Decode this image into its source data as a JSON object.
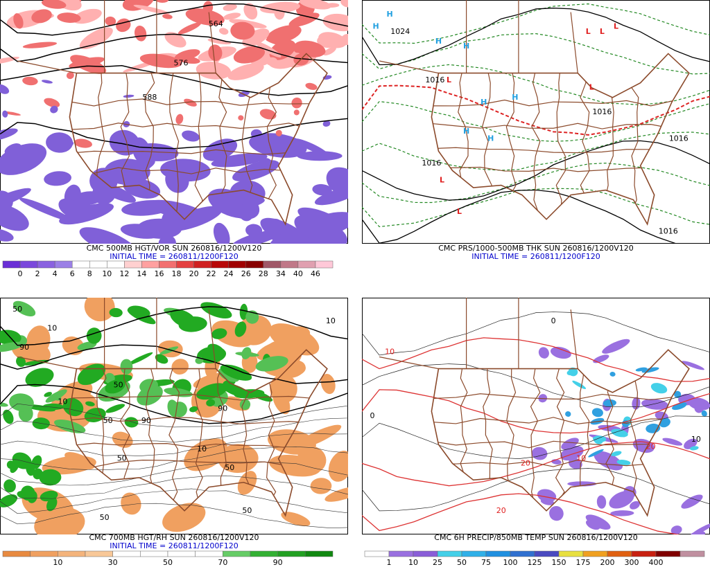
{
  "panels": [
    {
      "caption": "CMC 500MB HGT/VOR SUN 260816/1200V120",
      "initial_time": "INITIAL TIME = 260811/1200F120",
      "colorbar": {
        "colors": [
          "#6a2fd6",
          "#7a48dc",
          "#8a62e0",
          "#9b80e6",
          "#ffffff",
          "#ffffff",
          "#ffffff",
          "#ffd0d0",
          "#ffa0a0",
          "#f27070",
          "#e44040",
          "#d02020",
          "#b80808",
          "#a00000",
          "#880000",
          "#a05868",
          "#c07888",
          "#e0a0b0",
          "#ffc8d8"
        ],
        "labels": [
          "0",
          "2",
          "4",
          "6",
          "8",
          "10",
          "12",
          "14",
          "16",
          "18",
          "20",
          "22",
          "24",
          "26",
          "28",
          "34",
          "40",
          "46"
        ]
      },
      "fill_colors": [
        "#8060d8",
        "#f07070",
        "#ffb0b0"
      ],
      "map_labels": [
        {
          "text": "564",
          "color": "#000000"
        },
        {
          "text": "576",
          "color": "#000000"
        },
        {
          "text": "588",
          "color": "#000000"
        }
      ]
    },
    {
      "caption": "CMC PRS/1000-500MB THK SUN 260816/1200V120",
      "initial_time": "INITIAL TIME = 260811/1200F120",
      "colorbar": null,
      "fill_colors": [],
      "map_labels": [
        {
          "text": "H",
          "color": "#22a0e0"
        },
        {
          "text": "H",
          "color": "#22a0e0"
        },
        {
          "text": "H",
          "color": "#22a0e0"
        },
        {
          "text": "H",
          "color": "#22a0e0"
        },
        {
          "text": "H",
          "color": "#22a0e0"
        },
        {
          "text": "H",
          "color": "#22a0e0"
        },
        {
          "text": "H",
          "color": "#22a0e0"
        },
        {
          "text": "H",
          "color": "#22a0e0"
        },
        {
          "text": "L",
          "color": "#e02020"
        },
        {
          "text": "L",
          "color": "#e02020"
        },
        {
          "text": "L",
          "color": "#e02020"
        },
        {
          "text": "L",
          "color": "#e02020"
        },
        {
          "text": "L",
          "color": "#e02020"
        },
        {
          "text": "L",
          "color": "#e02020"
        },
        {
          "text": "L",
          "color": "#e02020"
        },
        {
          "text": "1024",
          "color": "#000000"
        },
        {
          "text": "1016",
          "color": "#000000"
        },
        {
          "text": "1016",
          "color": "#000000"
        },
        {
          "text": "1016",
          "color": "#000000"
        },
        {
          "text": "1016",
          "color": "#000000"
        },
        {
          "text": "1016",
          "color": "#000000"
        }
      ]
    },
    {
      "caption": "CMC 700MB HGT/RH SUN 260816/1200V120",
      "initial_time": "INITIAL TIME = 260811/1200F120",
      "colorbar": {
        "colors": [
          "#e88a40",
          "#f0a060",
          "#f4b47c",
          "#f8c898",
          "#ffffff",
          "#ffffff",
          "#ffffff",
          "#ffffff",
          "#66cc66",
          "#33b033",
          "#22a022",
          "#118811"
        ],
        "labels": [
          "10",
          "30",
          "50",
          "70",
          "90"
        ]
      },
      "fill_colors": [
        "#f0a060",
        "#22aa22",
        "#55c055"
      ],
      "map_labels": [
        {
          "text": "50",
          "color": "#000000"
        },
        {
          "text": "10",
          "color": "#000000"
        },
        {
          "text": "90",
          "color": "#000000"
        },
        {
          "text": "50",
          "color": "#000000"
        },
        {
          "text": "10",
          "color": "#000000"
        },
        {
          "text": "50",
          "color": "#000000"
        },
        {
          "text": "90",
          "color": "#000000"
        },
        {
          "text": "50",
          "color": "#000000"
        },
        {
          "text": "10",
          "color": "#000000"
        },
        {
          "text": "50",
          "color": "#000000"
        },
        {
          "text": "90",
          "color": "#000000"
        },
        {
          "text": "50",
          "color": "#000000"
        },
        {
          "text": "10",
          "color": "#000000"
        },
        {
          "text": "50",
          "color": "#000000"
        }
      ]
    },
    {
      "caption": "CMC 6H PRECIP/850MB TEMP SUN 260816/1200V120",
      "initial_time": null,
      "colorbar": {
        "colors": [
          "#ffffff",
          "#9a70e0",
          "#8a5ed8",
          "#44d0e8",
          "#30b0e8",
          "#2090e0",
          "#3070d0",
          "#4a4ac0",
          "#e8e040",
          "#f0a020",
          "#e06010",
          "#c82010",
          "#800000",
          "#c090a0"
        ],
        "labels": [
          "1",
          "10",
          "25",
          "50",
          "75",
          "100",
          "125",
          "150",
          "175",
          "200",
          "300",
          "400"
        ]
      },
      "fill_colors": [
        "#9a70e0",
        "#44d0e8",
        "#30a0e0"
      ],
      "map_labels": [
        {
          "text": "0",
          "color": "#000000"
        },
        {
          "text": "10",
          "color": "#e02020"
        },
        {
          "text": "20",
          "color": "#e02020"
        },
        {
          "text": "0",
          "color": "#000000"
        },
        {
          "text": "10",
          "color": "#e02020"
        },
        {
          "text": "20",
          "color": "#e02020"
        },
        {
          "text": "10",
          "color": "#000000"
        },
        {
          "text": "20",
          "color": "#e02020"
        }
      ]
    }
  ]
}
